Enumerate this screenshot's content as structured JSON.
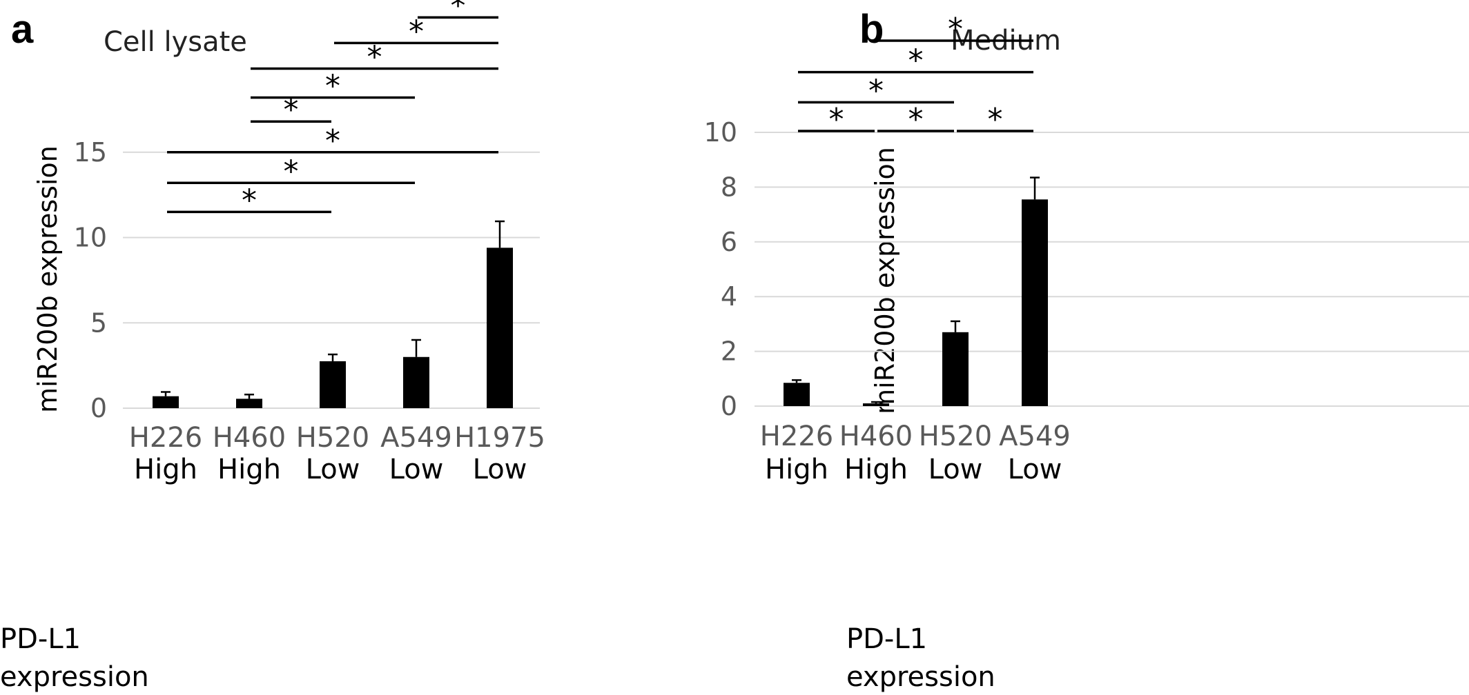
{
  "chart_data": [
    {
      "panel": "a",
      "type": "bar",
      "title": "Cell lysate",
      "ylabel": "miR200b expression",
      "ylim": [
        0,
        15
      ],
      "yticks": [
        "0",
        "5",
        "10",
        "15"
      ],
      "grid": true,
      "categories": [
        "H226",
        "H460",
        "H520",
        "A549",
        "H1975"
      ],
      "row_label": [
        "PD-L1",
        "expression"
      ],
      "pdl1": [
        "High",
        "High",
        "Low",
        "Low",
        "Low"
      ],
      "values": [
        0.7,
        0.55,
        2.75,
        3.0,
        9.4
      ],
      "errors": [
        0.25,
        0.25,
        0.4,
        1.0,
        1.55
      ],
      "significance": [
        {
          "from": 0,
          "to": 2,
          "y": 11.5,
          "label": "*"
        },
        {
          "from": 0,
          "to": 3,
          "y": 13.2,
          "label": "*"
        },
        {
          "from": 0,
          "to": 4,
          "y": 15.0,
          "label": "*"
        },
        {
          "from": 1,
          "to": 2,
          "y": 16.8,
          "label": "*"
        },
        {
          "from": 1,
          "to": 3,
          "y": 18.2,
          "label": "*"
        },
        {
          "from": 1,
          "to": 4,
          "y": 19.9,
          "label": "*"
        },
        {
          "from": 2,
          "to": 4,
          "y": 21.4,
          "label": "*"
        },
        {
          "from": 3,
          "to": 4,
          "y": 22.9,
          "label": "*"
        }
      ]
    },
    {
      "panel": "b",
      "type": "bar",
      "title": "Medium",
      "ylabel": "miR200b expression",
      "ylim": [
        0,
        10
      ],
      "yticks": [
        "0",
        "2",
        "4",
        "6",
        "8",
        "10"
      ],
      "grid": true,
      "categories": [
        "H226",
        "H460",
        "H520",
        "A549"
      ],
      "row_label": [
        "PD-L1",
        "expression"
      ],
      "pdl1": [
        "High",
        "High",
        "Low",
        "Low"
      ],
      "values": [
        0.85,
        0.1,
        2.7,
        7.55
      ],
      "errors": [
        0.1,
        0.05,
        0.4,
        0.8
      ],
      "significance": [
        {
          "from": 0,
          "to": 1,
          "y": 10.05,
          "label": "*"
        },
        {
          "from": 1,
          "to": 2,
          "y": 10.05,
          "label": "*"
        },
        {
          "from": 2,
          "to": 3,
          "y": 10.05,
          "label": "*"
        },
        {
          "from": 0,
          "to": 2,
          "y": 11.1,
          "label": "*"
        },
        {
          "from": 0,
          "to": 3,
          "y": 12.2,
          "label": "*"
        },
        {
          "from": 1,
          "to": 3,
          "y": 13.35,
          "label": "*"
        }
      ]
    }
  ]
}
